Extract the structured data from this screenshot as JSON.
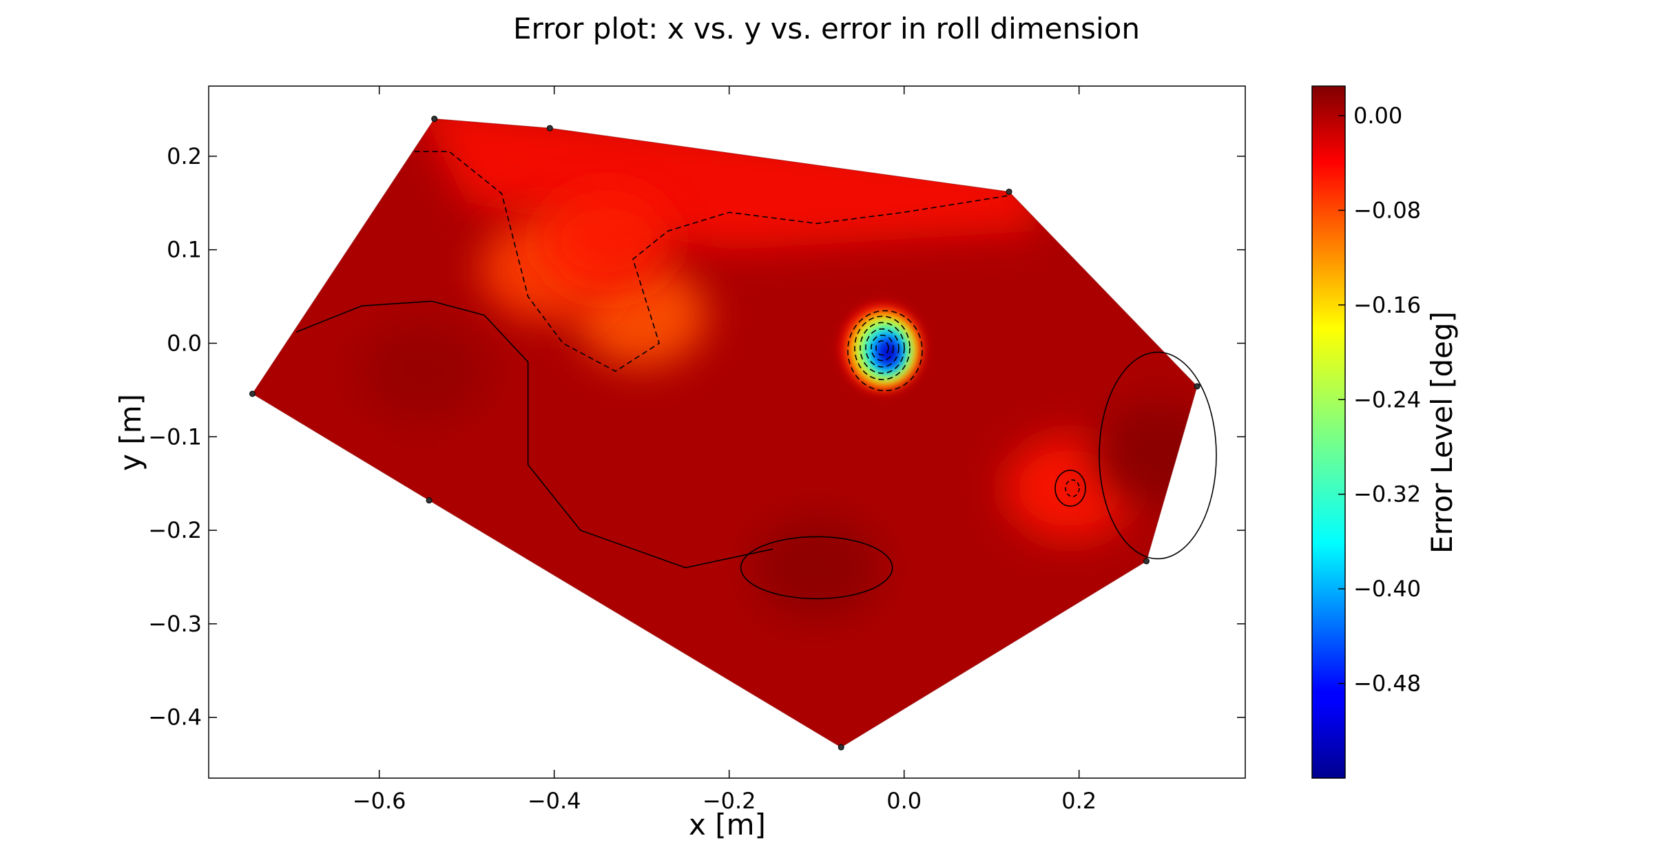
{
  "chart_data": {
    "type": "heatmap",
    "title": "Error plot: x vs. y vs. error in roll dimension",
    "xlabel": "x [m]",
    "ylabel": "y [m]",
    "colorbar_label": "Error Level [deg]",
    "xlim": [
      -0.795,
      0.39
    ],
    "ylim": [
      -0.465,
      0.275
    ],
    "x_ticks": [
      -0.6,
      -0.4,
      -0.2,
      0.0,
      0.2
    ],
    "x_tick_labels": [
      "−0.6",
      "−0.4",
      "−0.2",
      "0.0",
      "0.2"
    ],
    "y_ticks": [
      0.2,
      0.1,
      0.0,
      -0.1,
      -0.2,
      -0.3,
      -0.4
    ],
    "y_tick_labels": [
      "0.2",
      "0.1",
      "0.0",
      "−0.1",
      "−0.2",
      "−0.3",
      "−0.4"
    ],
    "colorbar_range": [
      -0.56,
      0.025
    ],
    "colorbar_ticks": [
      0.0,
      -0.08,
      -0.16,
      -0.24,
      -0.32,
      -0.4,
      -0.48
    ],
    "colorbar_tick_labels": [
      "0.00",
      "−0.08",
      "−0.16",
      "−0.24",
      "−0.32",
      "−0.40",
      "−0.48"
    ],
    "colormap": "jet",
    "grid": false,
    "hull_points": [
      {
        "x": -0.537,
        "y": 0.24
      },
      {
        "x": -0.405,
        "y": 0.23
      },
      {
        "x": 0.12,
        "y": 0.162
      },
      {
        "x": 0.335,
        "y": -0.046
      },
      {
        "x": 0.277,
        "y": -0.233
      },
      {
        "x": -0.072,
        "y": -0.432
      },
      {
        "x": -0.543,
        "y": -0.168
      },
      {
        "x": -0.745,
        "y": -0.054
      }
    ],
    "error_features": [
      {
        "x": -0.025,
        "y": -0.005,
        "value": -0.53,
        "note": "minimum"
      },
      {
        "x": 0.19,
        "y": -0.155,
        "value": -0.06
      },
      {
        "x": 0.29,
        "y": -0.12,
        "value": 0.02
      },
      {
        "x": -0.1,
        "y": -0.24,
        "value": 0.018
      },
      {
        "x": -0.3,
        "y": 0.03,
        "value": -0.095
      },
      {
        "x": -0.41,
        "y": 0.08,
        "value": -0.085
      },
      {
        "x": -0.34,
        "y": 0.11,
        "value": -0.065
      },
      {
        "x": -0.55,
        "y": -0.03,
        "value": 0.012
      }
    ],
    "background_value": 0.0,
    "contours": [
      {
        "level": -0.04,
        "style": "dashed"
      },
      {
        "level": 0.0,
        "style": "solid"
      }
    ]
  }
}
